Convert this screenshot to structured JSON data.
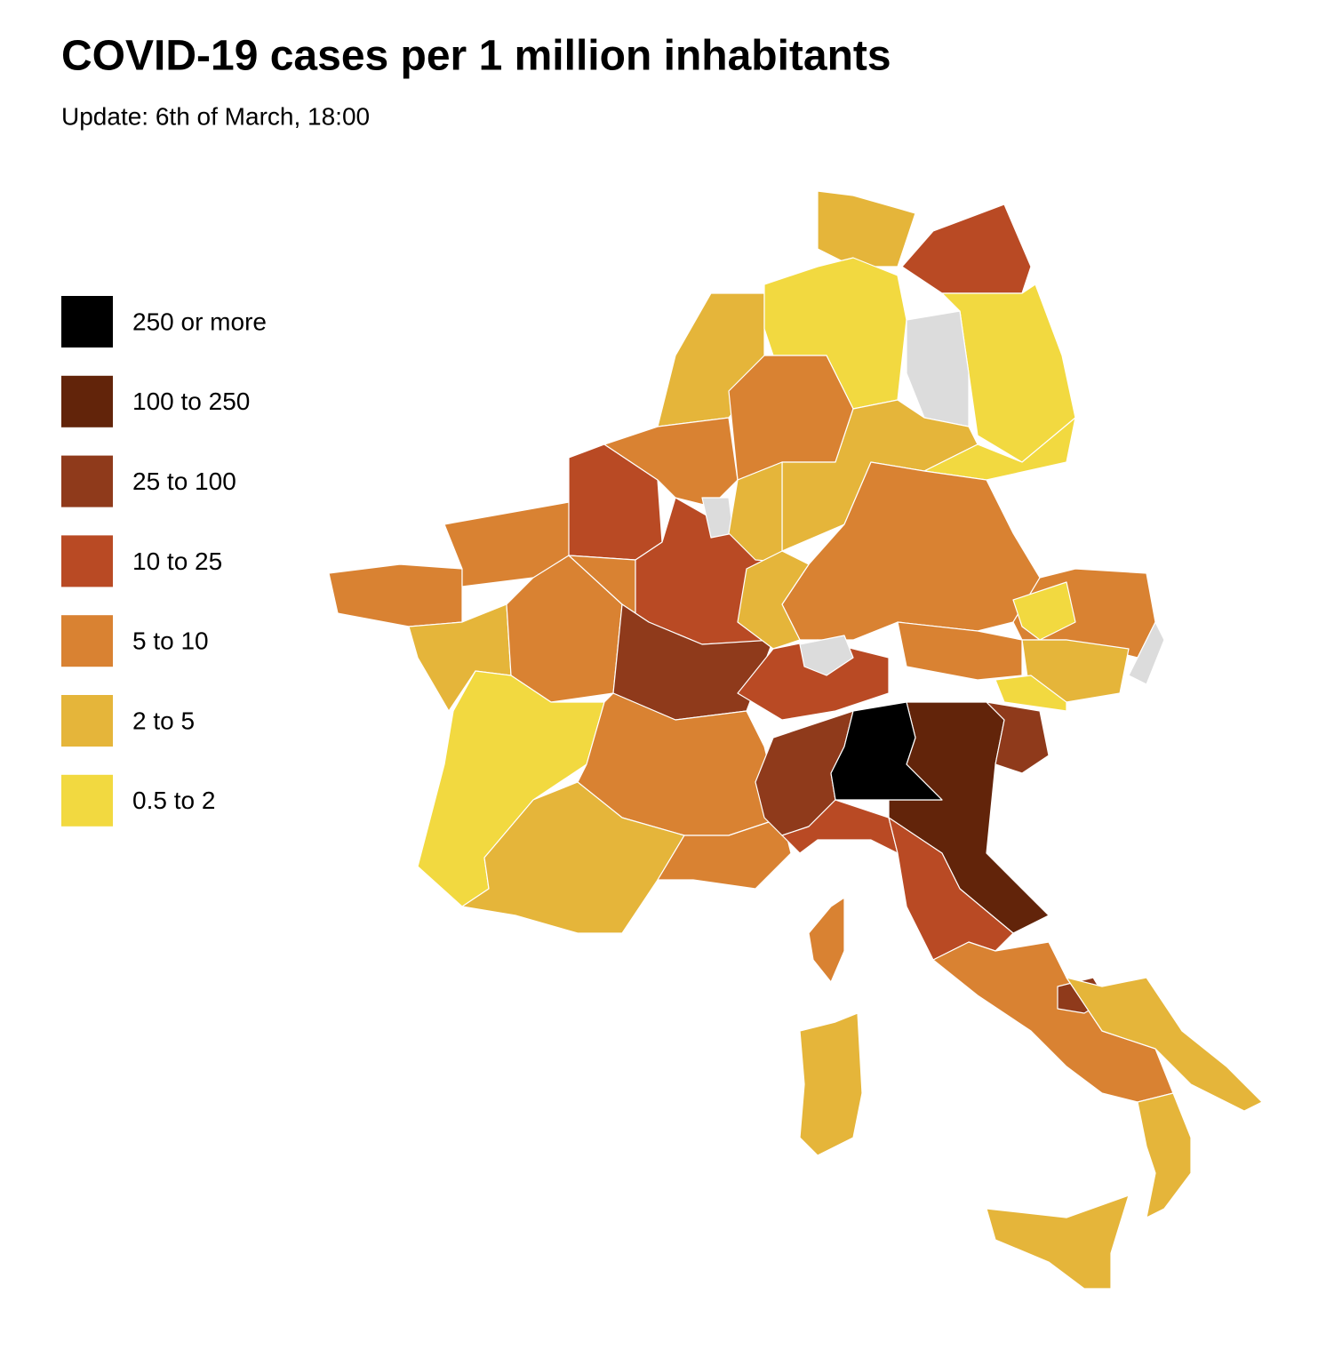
{
  "title": "COVID-19 cases per 1 million inhabitants",
  "subtitle": "Update: 6th of March, 18:00",
  "legend": [
    {
      "label": "250 or more",
      "color": "#000000"
    },
    {
      "label": "100 to 250",
      "color": "#62240a"
    },
    {
      "label": "25 to 100",
      "color": "#8f3a1b"
    },
    {
      "label": "10 to 25",
      "color": "#b94a24"
    },
    {
      "label": "5 to 10",
      "color": "#d98232"
    },
    {
      "label": "2 to 5",
      "color": "#e5b53a"
    },
    {
      "label": "0.5 to 2",
      "color": "#f2d940"
    }
  ]
}
